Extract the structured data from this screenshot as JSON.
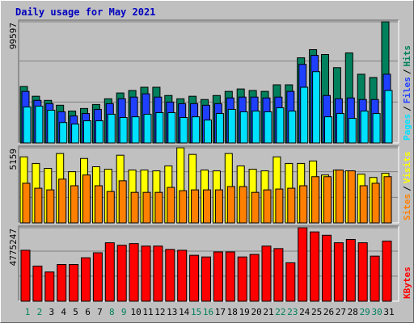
{
  "separator": "/",
  "chart_data": [
    {
      "type": "bar",
      "title": "Daily usage for May 2021",
      "ylim": [
        0,
        99597
      ],
      "yticks": [
        99597
      ],
      "series": [
        {
          "name": "Hits",
          "color": "#00805c",
          "values": [
            46400,
            38400,
            35000,
            31000,
            26200,
            28300,
            31600,
            36300,
            41100,
            43100,
            45800,
            45800,
            39000,
            36300,
            38400,
            35700,
            39000,
            42400,
            44400,
            43100,
            42400,
            47800,
            47800,
            70000,
            76700,
            72700,
            61900,
            74000,
            56500,
            53800,
            99597
          ]
        },
        {
          "name": "Files",
          "color": "#1f3fff",
          "values": [
            42400,
            35000,
            32300,
            25600,
            22200,
            24200,
            27600,
            32300,
            36300,
            37700,
            40400,
            37700,
            33600,
            32300,
            32300,
            31000,
            32300,
            37000,
            37700,
            37700,
            37000,
            37700,
            42400,
            64600,
            72000,
            39000,
            36300,
            37000,
            35700,
            35700,
            56500
          ]
        },
        {
          "name": "Pages",
          "color": "#00e0ff",
          "values": [
            29600,
            30300,
            26900,
            16800,
            15500,
            18200,
            18200,
            23600,
            20900,
            21500,
            23600,
            24900,
            24900,
            20900,
            21500,
            18800,
            24200,
            27600,
            25600,
            26200,
            25600,
            28900,
            26200,
            45800,
            58600,
            21500,
            24200,
            20200,
            26200,
            24200,
            43100
          ]
        }
      ]
    },
    {
      "type": "bar",
      "ylim": [
        0,
        5159
      ],
      "yticks": [
        5159
      ],
      "series": [
        {
          "name": "Visits",
          "color": "#ffff00",
          "values": [
            4536,
            4082,
            3742,
            4763,
            3515,
            4423,
            3856,
            3686,
            4649,
            3629,
            3629,
            3572,
            3912,
            5159,
            4706,
            3629,
            3572,
            4763,
            3912,
            3686,
            3572,
            4536,
            4082,
            4082,
            4253,
            3289,
            3629,
            3572,
            3345,
            3119,
            3402
          ]
        },
        {
          "name": "Sites",
          "color": "#ff8000",
          "values": [
            2722,
            2381,
            2268,
            3005,
            2552,
            3289,
            2552,
            2155,
            2892,
            2098,
            2098,
            2098,
            2438,
            2211,
            2268,
            2268,
            2268,
            2495,
            2495,
            2098,
            2268,
            2325,
            2381,
            2552,
            3175,
            3175,
            3629,
            3572,
            2552,
            2722,
            3175
          ]
        }
      ]
    },
    {
      "type": "bar",
      "ylim": [
        0,
        4775247
      ],
      "yticks": [
        4775247
      ],
      "categories": [
        "1",
        "2",
        "3",
        "4",
        "5",
        "6",
        "7",
        "8",
        "9",
        "10",
        "11",
        "12",
        "13",
        "14",
        "15",
        "16",
        "17",
        "18",
        "19",
        "20",
        "21",
        "22",
        "23",
        "24",
        "25",
        "26",
        "27",
        "28",
        "29",
        "30",
        "31"
      ],
      "category_colors": [
        "#00805c",
        "#00805c",
        "#000000",
        "#000000",
        "#000000",
        "#000000",
        "#000000",
        "#00805c",
        "#00805c",
        "#000000",
        "#000000",
        "#000000",
        "#000000",
        "#000000",
        "#00805c",
        "#00805c",
        "#000000",
        "#000000",
        "#000000",
        "#000000",
        "#000000",
        "#00805c",
        "#00805c",
        "#000000",
        "#000000",
        "#000000",
        "#000000",
        "#000000",
        "#00805c",
        "#00805c",
        "#000000"
      ],
      "series": [
        {
          "name": "KBytes",
          "color": "#ff0000",
          "values": [
            3310100,
            2279100,
            1899200,
            2387600,
            2387600,
            2821700,
            3147300,
            3798500,
            3635700,
            3744200,
            3581400,
            3581400,
            3364400,
            3310100,
            2984500,
            2876000,
            3201600,
            3201600,
            2876000,
            3038800,
            3581400,
            3418600,
            2496100,
            4775247,
            4503900,
            4286900,
            3798500,
            4015500,
            3798500,
            2930300,
            3907000
          ]
        }
      ]
    }
  ]
}
